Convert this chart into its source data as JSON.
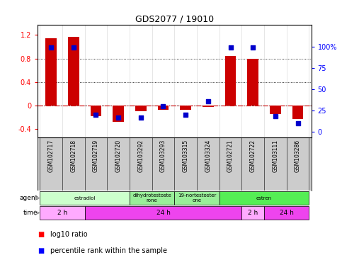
{
  "title": "GDS2077 / 19010",
  "samples": [
    "GSM102717",
    "GSM102718",
    "GSM102719",
    "GSM102720",
    "GSM103292",
    "GSM103293",
    "GSM103315",
    "GSM103324",
    "GSM102721",
    "GSM102722",
    "GSM103111",
    "GSM103286"
  ],
  "log10_ratio": [
    1.15,
    1.17,
    -0.18,
    -0.28,
    -0.1,
    -0.08,
    -0.08,
    -0.03,
    0.84,
    0.8,
    -0.15,
    -0.23
  ],
  "percentile_rank": [
    99,
    99,
    20,
    17,
    17,
    30,
    20,
    36,
    99,
    99,
    18,
    10
  ],
  "ylim_left": [
    -0.55,
    1.38
  ],
  "ylim_right": [
    -6.9,
    126
  ],
  "yticks_left": [
    -0.4,
    0.0,
    0.4,
    0.8,
    1.2
  ],
  "yticks_right": [
    0,
    25,
    50,
    75,
    100
  ],
  "ytick_labels_left": [
    "-0.4",
    "0",
    "0.4",
    "0.8",
    "1.2"
  ],
  "ytick_labels_right": [
    "0",
    "25",
    "50",
    "75",
    "100%"
  ],
  "hlines": [
    0.8,
    0.4,
    0.0
  ],
  "bar_color": "#CC0000",
  "dot_color": "#0000CC",
  "agent_groups": [
    {
      "label": "estradiol",
      "start": 0,
      "end": 4,
      "color": "#CCFFCC"
    },
    {
      "label": "dihydrotestoste\nrone",
      "start": 4,
      "end": 6,
      "color": "#99EE99"
    },
    {
      "label": "19-nortestoster\none",
      "start": 6,
      "end": 8,
      "color": "#99EE99"
    },
    {
      "label": "estren",
      "start": 8,
      "end": 12,
      "color": "#55EE55"
    }
  ],
  "time_groups": [
    {
      "label": "2 h",
      "start": 0,
      "end": 2,
      "color": "#FFAAFF"
    },
    {
      "label": "24 h",
      "start": 2,
      "end": 9,
      "color": "#EE44EE"
    },
    {
      "label": "2 h",
      "start": 9,
      "end": 10,
      "color": "#FFAAFF"
    },
    {
      "label": "24 h",
      "start": 10,
      "end": 12,
      "color": "#EE44EE"
    }
  ],
  "legend_red_label": "log10 ratio",
  "legend_blue_label": "percentile rank within the sample",
  "bg_color": "#FFFFFF",
  "agent_label": "agent",
  "time_label": "time"
}
